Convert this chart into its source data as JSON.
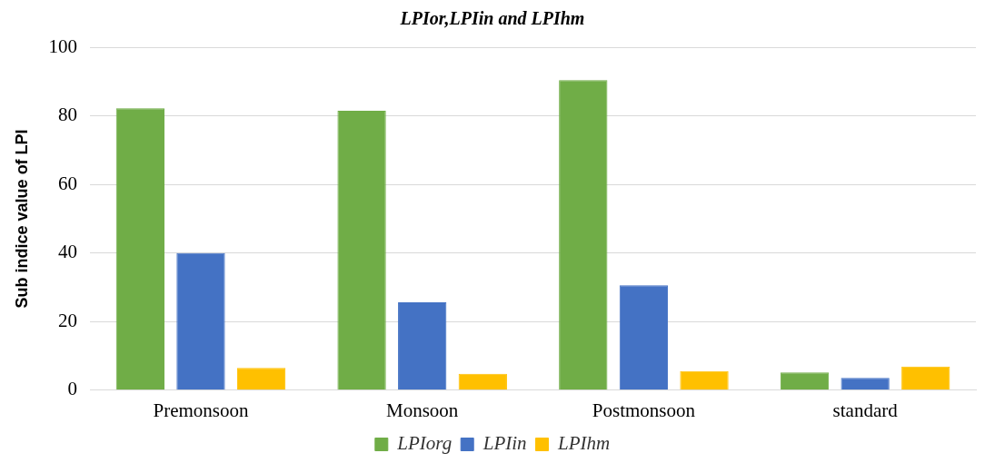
{
  "chart_data": {
    "type": "bar",
    "title": "LPIor,LPIin and LPIhm",
    "ylabel": "Sub indice value of LPI",
    "categories": [
      "Premonsoon",
      "Monsoon",
      "Postmonsoon",
      "standard"
    ],
    "series": [
      {
        "name": "LPIorg",
        "color": "#70ad47",
        "values": [
          82.2,
          81.5,
          90.4,
          5.2
        ]
      },
      {
        "name": "LPIin",
        "color": "#4472c4",
        "values": [
          40,
          25.6,
          30.6,
          3.6
        ]
      },
      {
        "name": "LPIhm",
        "color": "#ffc000",
        "values": [
          6.5,
          4.8,
          5.6,
          6.9
        ]
      }
    ],
    "ylim": [
      0,
      100
    ],
    "yticks": [
      0,
      20,
      40,
      60,
      80,
      100
    ],
    "grid": "y",
    "legend": "bottom"
  }
}
